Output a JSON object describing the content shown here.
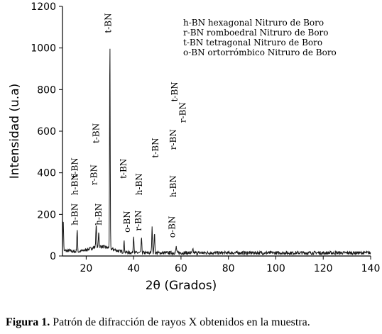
{
  "chart_data": {
    "type": "line",
    "xlabel": "2θ (Grados)",
    "ylabel": "Intensidad (u.a)",
    "xlim": [
      10,
      140
    ],
    "ylim": [
      0,
      1200
    ],
    "xticks": [
      20,
      40,
      60,
      80,
      100,
      120,
      140
    ],
    "yticks": [
      0,
      200,
      400,
      600,
      800,
      1000,
      1200
    ],
    "x_tick_labels": [
      "20",
      "40",
      "60",
      "80",
      "100",
      "120",
      "140"
    ],
    "y_tick_labels": [
      "0",
      "200",
      "400",
      "600",
      "800",
      "1000",
      "1200"
    ],
    "grid": false,
    "legend": {
      "placement": "top-right",
      "entries": [
        "h-BN hexagonal Nitruro de Boro",
        "r-BN romboedral Nitruro de Boro",
        "t-BN tetragonal  Nitruro de Boro",
        "o-BN ortorrómbico  Nitruro de Boro"
      ]
    },
    "series": [
      {
        "baseline": 15,
        "peaks": [
          {
            "x": 10.3,
            "y": 170
          },
          {
            "x": 16.2,
            "y": 120
          },
          {
            "x": 24.2,
            "y": 125
          },
          {
            "x": 25.3,
            "y": 85
          },
          {
            "x": 30.0,
            "y": 1015
          },
          {
            "x": 36.0,
            "y": 65
          },
          {
            "x": 40.0,
            "y": 100
          },
          {
            "x": 43.3,
            "y": 85
          },
          {
            "x": 47.8,
            "y": 135
          },
          {
            "x": 48.8,
            "y": 110
          },
          {
            "x": 58.0,
            "y": 45
          },
          {
            "x": 65.0,
            "y": 30
          }
        ]
      }
    ],
    "annotations": [
      {
        "text": "h-BN",
        "x": 16.5,
        "y": 200
      },
      {
        "text": "h-BN",
        "x": 26.5,
        "y": 200
      },
      {
        "text": "h-BN",
        "x": 16.5,
        "y": 345
      },
      {
        "text": "t-BN",
        "x": 16.5,
        "y": 425
      },
      {
        "text": "r-BN",
        "x": 24.5,
        "y": 390
      },
      {
        "text": "t-BN",
        "x": 25.5,
        "y": 590
      },
      {
        "text": "t-BN",
        "x": 30.5,
        "y": 1120
      },
      {
        "text": "t-BN",
        "x": 37.0,
        "y": 420
      },
      {
        "text": "h-BN",
        "x": 43.5,
        "y": 345
      },
      {
        "text": "o-BN",
        "x": 38.5,
        "y": 165
      },
      {
        "text": "r-BN",
        "x": 43.3,
        "y": 170
      },
      {
        "text": "t-BN",
        "x": 50.5,
        "y": 520
      },
      {
        "text": "r-BN",
        "x": 58.0,
        "y": 560
      },
      {
        "text": "h-BN",
        "x": 58.0,
        "y": 335
      },
      {
        "text": "o-BN",
        "x": 57.5,
        "y": 140
      },
      {
        "text": "t-BN",
        "x": 58.5,
        "y": 790
      },
      {
        "text": "r-BN",
        "x": 62.0,
        "y": 690
      }
    ]
  },
  "caption": {
    "label": "Figura 1.",
    "text": " Patrón de difracción de rayos X obtenidos en la muestra."
  }
}
